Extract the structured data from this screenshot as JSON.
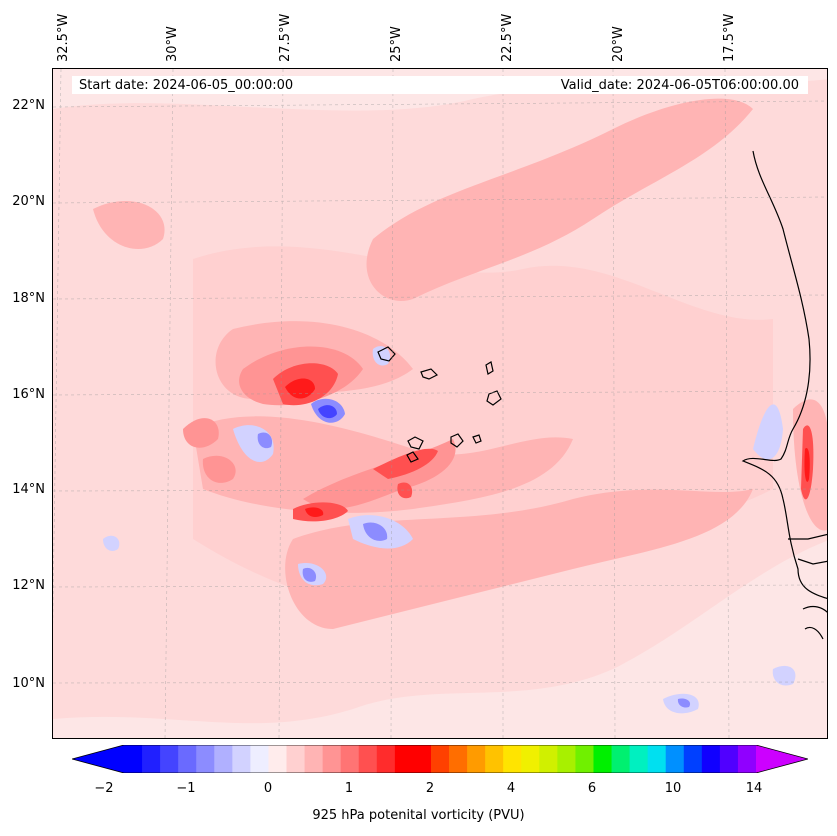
{
  "header": {
    "start_date": "Start date: 2024-06-05_00:00:00",
    "valid_date": "Valid_date: 2024-06-05T06:00:00.00"
  },
  "longitude_labels": [
    "32.5°W",
    "30°W",
    "27.5°W",
    "25°W",
    "22.5°W",
    "20°W",
    "17.5°W"
  ],
  "latitude_labels": [
    "22°N",
    "20°N",
    "18°N",
    "16°N",
    "14°N",
    "12°N",
    "10°N"
  ],
  "colorbar": {
    "label": "925 hPa potenital vorticity (PVU)",
    "ticks": [
      "−2",
      "−1",
      "0",
      "1",
      "2",
      "4",
      "6",
      "10",
      "14"
    ],
    "colors": [
      "#0000ff",
      "#2020ff",
      "#4444ff",
      "#6a6aff",
      "#8c8cff",
      "#b0b0ff",
      "#d2d2ff",
      "#eeeeff",
      "#ffecec",
      "#ffd0d0",
      "#ffb4b4",
      "#ff9494",
      "#ff7474",
      "#ff5050",
      "#ff2c2c",
      "#ff0000",
      "#ff0000",
      "#ff4000",
      "#ff6e00",
      "#ff9b00",
      "#ffc200",
      "#ffe400",
      "#f0f000",
      "#d0f000",
      "#a8f000",
      "#70f000",
      "#00f000",
      "#00f070",
      "#00f0c0",
      "#00e0f0",
      "#0090ff",
      "#0040ff",
      "#1000ff",
      "#5000ff",
      "#9000ff"
    ],
    "min_color": "#0000ff",
    "max_color": "#cc00ff"
  },
  "map_colors": {
    "background": "#fde6e6",
    "light_pink": "#ffd0d0",
    "pink": "#ffb4b4",
    "salmon": "#ff9494",
    "red": "#ff5050",
    "deep_red": "#ff1a1a",
    "light_blue": "#d2d2ff",
    "blue": "#8c8cff",
    "deep_blue": "#4444ff",
    "coastline": "#000000"
  }
}
